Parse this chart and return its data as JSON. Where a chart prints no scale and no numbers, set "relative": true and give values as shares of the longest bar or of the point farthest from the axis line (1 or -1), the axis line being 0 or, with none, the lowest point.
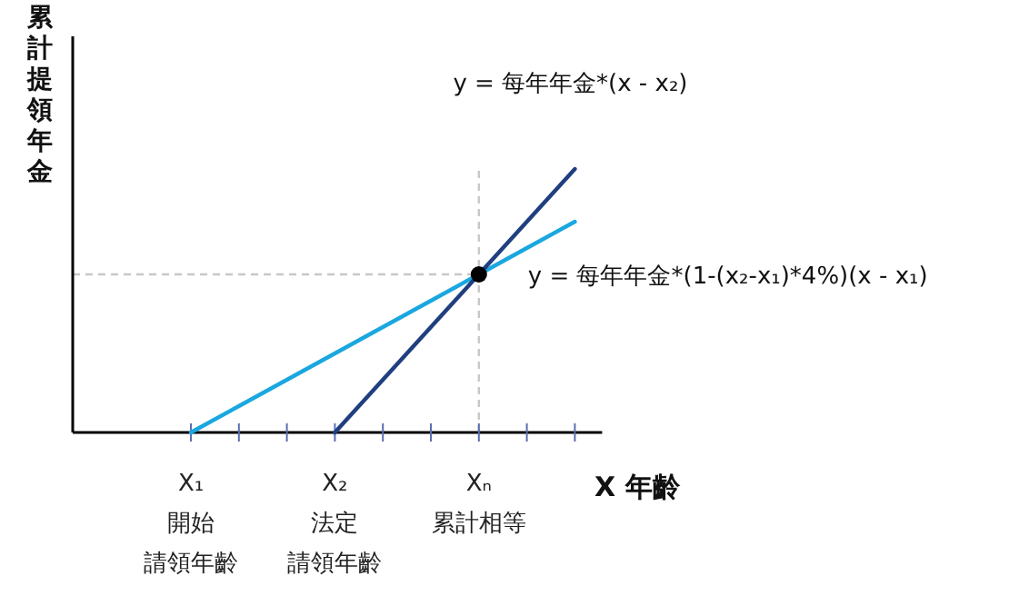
{
  "chart_data": {
    "type": "line",
    "relative": true,
    "xlabel": "X 年齡",
    "ylabel": "累計提領年金",
    "categories": [
      "X₁\n開始請領年齡",
      null,
      null,
      "X₂\n法定請領年齡",
      null,
      null,
      "Xₙ\n累計相等",
      null,
      null
    ],
    "series": [
      {
        "color": "#1aa7e0",
        "values": [
          0,
          0.1,
          0.2,
          0.3,
          0.4,
          0.5,
          0.6,
          0.7,
          0.8
        ]
      },
      {
        "color": "#1f3f7f",
        "values": [
          null,
          null,
          null,
          0,
          0.2,
          0.4,
          0.6,
          0.8,
          1.0
        ]
      },
      {
        "type": "scatter",
        "color": "#000000",
        "x": [
          "Xₙ\n累計相等"
        ],
        "values": [
          0.6
        ]
      }
    ],
    "ref_lines": [
      {
        "axis": "y",
        "value": 0.6,
        "color": "#c8c8c8",
        "line_style": "dashed"
      },
      {
        "axis": "x",
        "value": "Xₙ\n累計相等",
        "color": "#c8c8c8",
        "line_style": "dashed"
      }
    ],
    "annotations": [
      {
        "text": "y =  每年年金*(x - x₂)",
        "y": 1.0
      },
      {
        "text": "y =  每年年金*(1-(x₂-x₁)*4%)(x - x₁)",
        "x": "Xₙ\n累計相等",
        "y": 0.6
      }
    ]
  }
}
